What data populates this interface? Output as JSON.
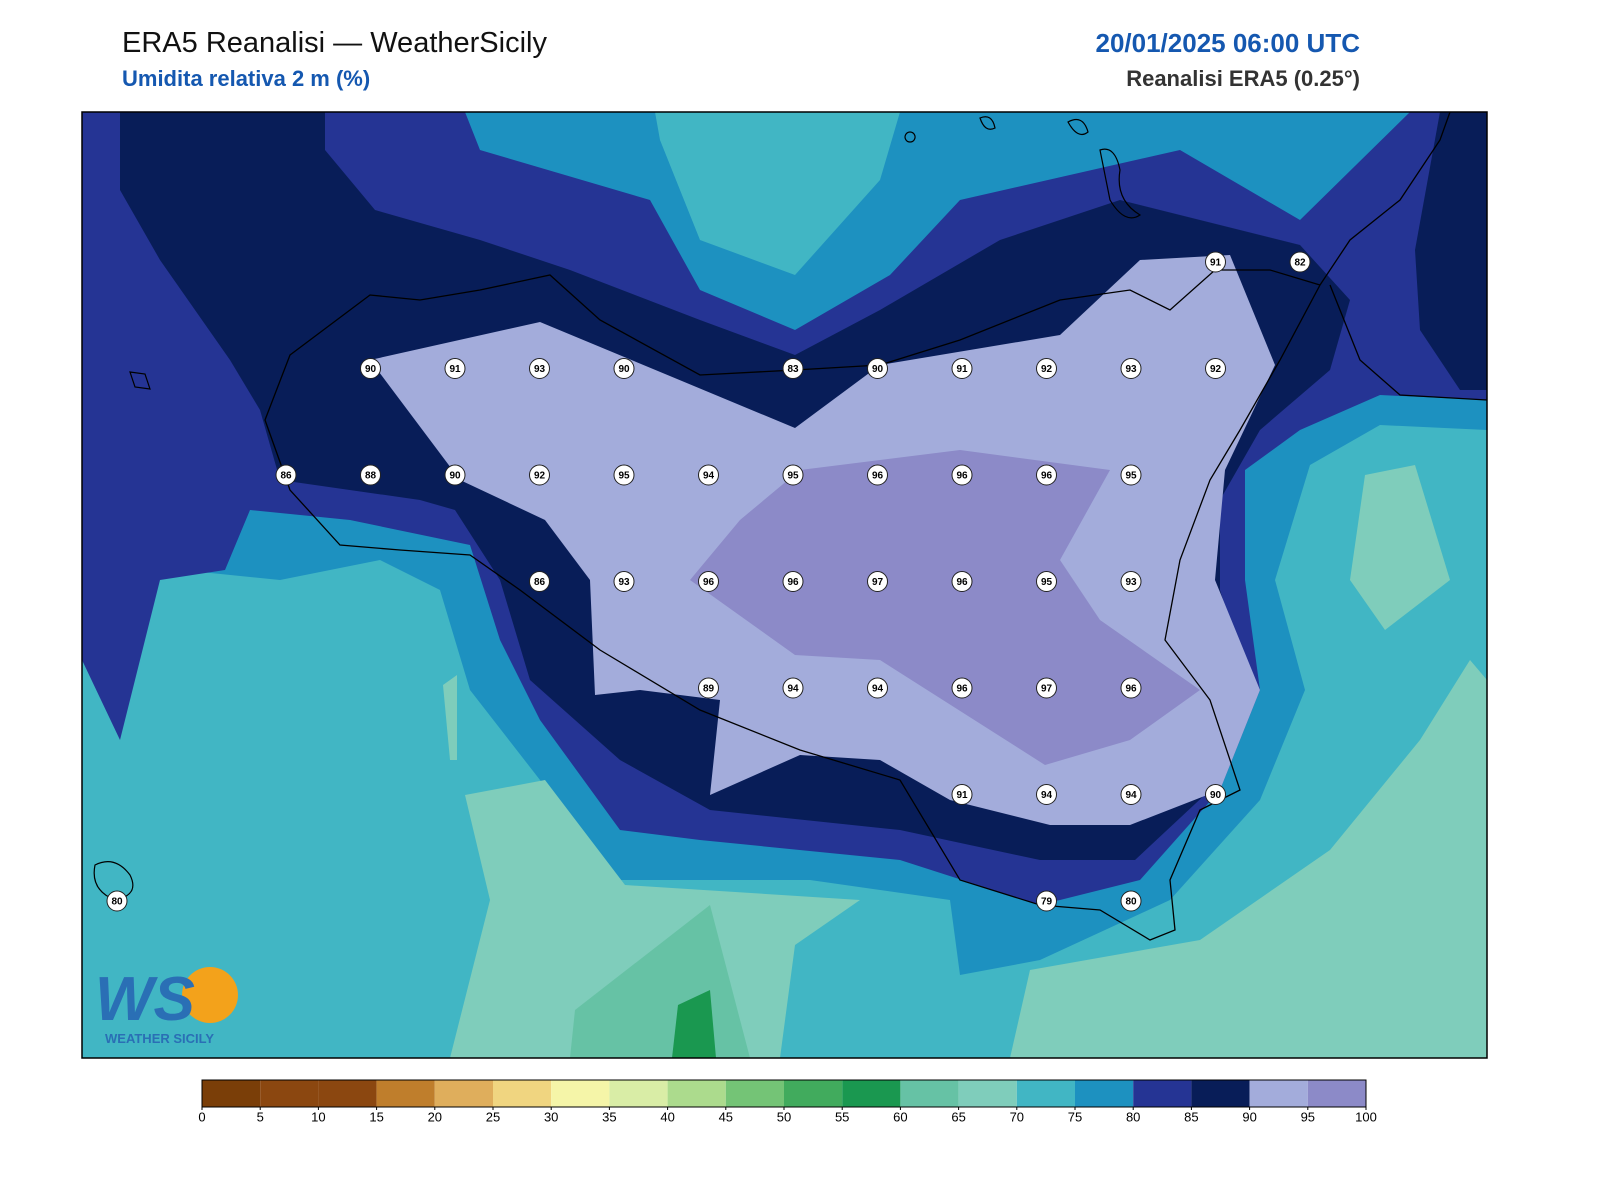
{
  "header": {
    "title": "ERA5 Reanalisi — WeatherSicily",
    "subtitle": "Umidita relativa 2 m (%)",
    "datetime": "20/01/2025 06:00 UTC",
    "source": "Reanalisi ERA5 (0.25°)"
  },
  "grid": {
    "rows": [
      [
        null,
        null,
        null,
        null,
        null,
        null,
        null,
        null,
        null,
        null,
        null,
        null,
        null,
        91,
        82
      ],
      [
        null,
        null,
        null,
        90,
        91,
        93,
        90,
        null,
        83,
        90,
        91,
        92,
        93,
        92,
        null
      ],
      [
        null,
        null,
        86,
        88,
        90,
        92,
        95,
        94,
        95,
        96,
        96,
        96,
        95,
        null,
        null
      ],
      [
        null,
        null,
        null,
        null,
        null,
        86,
        93,
        96,
        96,
        97,
        96,
        95,
        93,
        null,
        null
      ],
      [
        null,
        null,
        null,
        null,
        null,
        null,
        null,
        89,
        94,
        94,
        96,
        97,
        96,
        null,
        null
      ],
      [
        null,
        null,
        null,
        null,
        null,
        null,
        null,
        null,
        null,
        null,
        91,
        94,
        94,
        90,
        null
      ],
      [
        80,
        null,
        null,
        null,
        null,
        null,
        null,
        null,
        null,
        null,
        null,
        79,
        80,
        null,
        null
      ]
    ]
  },
  "colorbar": {
    "ticks": [
      0,
      5,
      10,
      15,
      20,
      25,
      30,
      35,
      40,
      45,
      50,
      55,
      60,
      65,
      70,
      75,
      80,
      85,
      90,
      95,
      100
    ],
    "colors": [
      "#7a3e08",
      "#8b4710",
      "#8b4710",
      "#bf7e2c",
      "#dfae5c",
      "#f0d580",
      "#f5f5a8",
      "#d9eda6",
      "#acdb8d",
      "#74c476",
      "#41ab5d",
      "#1a9850",
      "#66c2a5",
      "#7fcdbb",
      "#41b6c4",
      "#1d91c0",
      "#253494",
      "#081d58",
      "#a3acdb",
      "#8c8ac8"
    ]
  },
  "logo": {
    "mark": "WS",
    "text": "WEATHER SICILY"
  }
}
